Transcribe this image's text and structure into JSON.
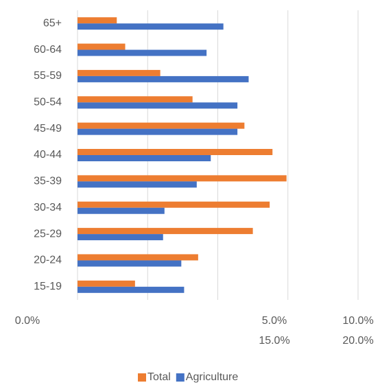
{
  "chart_data": {
    "type": "bar",
    "orientation": "horizontal",
    "categories": [
      "15-19",
      "20-24",
      "25-29",
      "30-34",
      "35-39",
      "40-44",
      "45-49",
      "50-54",
      "55-59",
      "60-64",
      "65+"
    ],
    "series": [
      {
        "name": "Total",
        "color": "#ED7D31",
        "values": [
          4.1,
          8.6,
          12.5,
          13.7,
          14.9,
          13.9,
          11.9,
          8.2,
          5.9,
          3.4,
          2.8
        ]
      },
      {
        "name": "Agriculture",
        "color": "#4472C4",
        "values": [
          7.6,
          7.4,
          6.1,
          6.2,
          8.5,
          9.5,
          11.4,
          11.4,
          12.2,
          9.2,
          10.4
        ]
      }
    ],
    "xlim": [
      0,
      20
    ],
    "xticks": [
      {
        "value": 0,
        "label": "0.0%"
      },
      {
        "value": 5,
        "label": "5.0%"
      },
      {
        "value": 10,
        "label": "10.0%"
      },
      {
        "value": 15,
        "label": "15.0%"
      },
      {
        "value": 20,
        "label": "20.0%"
      }
    ],
    "grid": true,
    "legend": "bottom"
  }
}
